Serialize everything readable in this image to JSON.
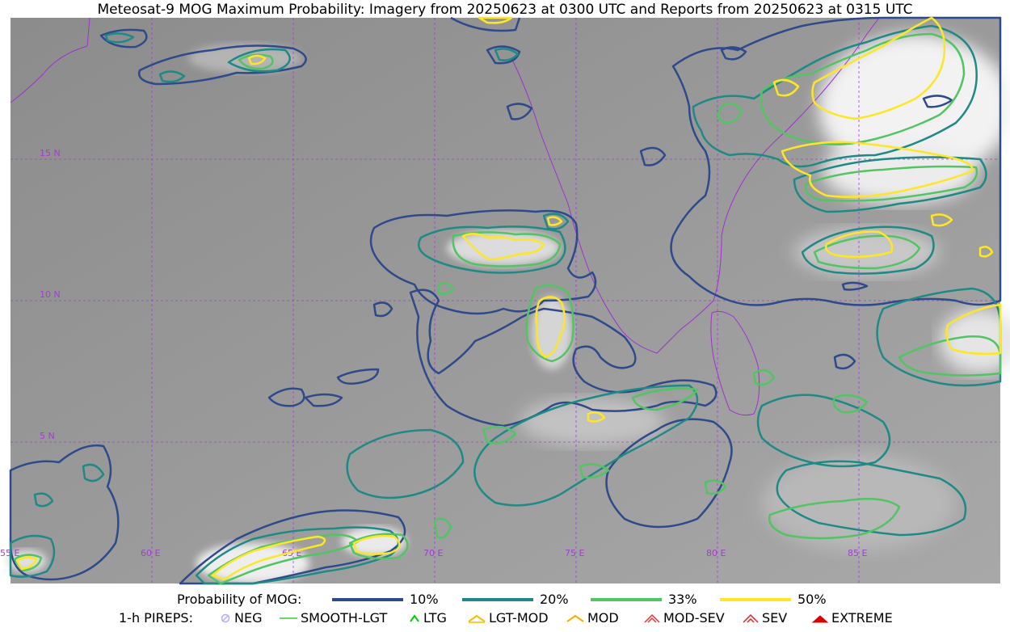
{
  "title": "Meteosat-9 MOG Maximum Probability: Imagery from 20250623 at 0300 UTC and Reports from 20250623 at 0315 UTC",
  "map": {
    "lat_labels": [
      "15 N",
      "10 N",
      "5 N"
    ],
    "lon_labels": [
      "55 E",
      "60 E",
      "65 E",
      "70 E",
      "75 E",
      "80 E",
      "85 E"
    ],
    "grid_color": "#a040d0",
    "coast_color": "#a030d0",
    "contour_colors": {
      "p10": "#2e4a8a",
      "p20": "#1f8a85",
      "p33": "#52c463",
      "p50": "#fde725"
    }
  },
  "legend": {
    "probability_title": "Probability of MOG:",
    "levels": [
      {
        "label": "10%",
        "color": "#2e4a8a"
      },
      {
        "label": "20%",
        "color": "#1f8a85"
      },
      {
        "label": "33%",
        "color": "#52c463"
      },
      {
        "label": "50%",
        "color": "#fde725"
      }
    ],
    "pireps_title": "1-h PIREPS:",
    "pireps": [
      {
        "label": "NEG",
        "icon": "neg-icon",
        "color": "#b0b0ff"
      },
      {
        "label": "SMOOTH-LGT",
        "icon": "smooth-lgt-icon",
        "color": "#33cc33"
      },
      {
        "label": "LTG",
        "icon": "ltg-icon",
        "color": "#00cc00"
      },
      {
        "label": "LGT-MOD",
        "icon": "lgt-mod-icon",
        "color": "#ffbb00"
      },
      {
        "label": "MOD",
        "icon": "mod-icon",
        "color": "#ffaa00"
      },
      {
        "label": "MOD-SEV",
        "icon": "mod-sev-icon",
        "color": "#ee3333"
      },
      {
        "label": "SEV",
        "icon": "sev-icon",
        "color": "#ee2222"
      },
      {
        "label": "EXTREME",
        "icon": "extreme-icon",
        "color": "#dd0000"
      }
    ]
  }
}
